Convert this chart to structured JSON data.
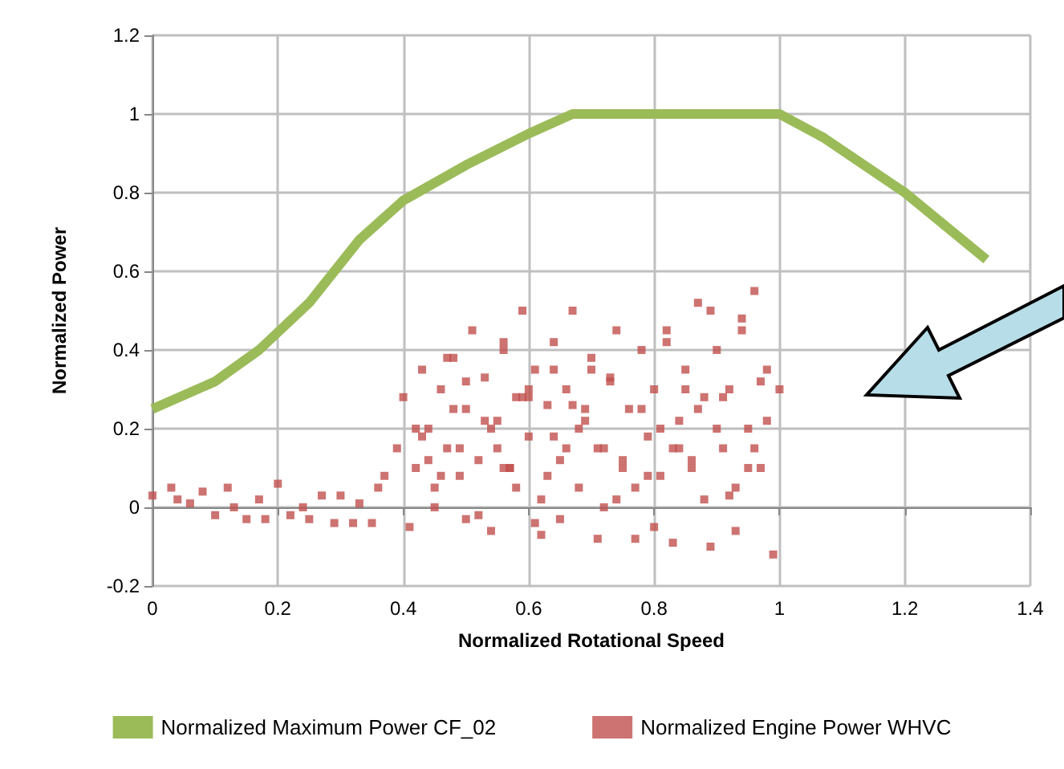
{
  "chart_data": {
    "type": "scatter",
    "xlabel": "Normalized Rotational Speed",
    "ylabel": "Normalized Power",
    "xlim": [
      0,
      1.4
    ],
    "xticks": [
      0,
      0.2,
      0.4,
      0.6,
      0.8,
      1,
      1.2,
      1.4
    ],
    "ylim": [
      -0.2,
      1.2
    ],
    "yticks": [
      -0.2,
      0,
      0.2,
      0.4,
      0.6,
      0.8,
      1,
      1.2
    ],
    "grid": true,
    "legend": "bottom",
    "series": [
      {
        "name": "Normalized Maximum Power CF_02",
        "type": "line",
        "color": "#9bbb59",
        "marker": "none",
        "x": [
          0,
          0.1,
          0.17,
          0.25,
          0.33,
          0.4,
          0.5,
          0.6,
          0.67,
          1,
          1.07,
          1.2,
          1.33
        ],
        "values": [
          0.25,
          0.32,
          0.4,
          0.52,
          0.68,
          0.78,
          0.87,
          0.95,
          1,
          1,
          0.94,
          0.8,
          0.63
        ]
      },
      {
        "name": "Normalized Engine Power WHVC",
        "color": "#c0504d",
        "marker": "square",
        "x": [
          0,
          0.03,
          0.04,
          0.06,
          0.08,
          0.1,
          0.12,
          0.13,
          0.15,
          0.17,
          0.18,
          0.2,
          0.22,
          0.24,
          0.25,
          0.27,
          0.29,
          0.3,
          0.32,
          0.33,
          0.35,
          0.36,
          0.37,
          0.39,
          0.4,
          0.41,
          0.42,
          0.43,
          0.44,
          0.45,
          0.46,
          0.47,
          0.48,
          0.49,
          0.5,
          0.51,
          0.52,
          0.53,
          0.54,
          0.55,
          0.56,
          0.57,
          0.58,
          0.59,
          0.6,
          0.61,
          0.62,
          0.63,
          0.64,
          0.65,
          0.66,
          0.67,
          0.68,
          0.69,
          0.7,
          0.71,
          0.72,
          0.73,
          0.74,
          0.75,
          0.76,
          0.77,
          0.78,
          0.79,
          0.8,
          0.81,
          0.82,
          0.83,
          0.84,
          0.85,
          0.86,
          0.87,
          0.88,
          0.89,
          0.9,
          0.91,
          0.92,
          0.93,
          0.94,
          0.95,
          0.96,
          0.97,
          0.98,
          0.99,
          1,
          0.42,
          0.45,
          0.48,
          0.5,
          0.52,
          0.55,
          0.58,
          0.6,
          0.63,
          0.65,
          0.68,
          0.7,
          0.72,
          0.75,
          0.78,
          0.8,
          0.83,
          0.85,
          0.88,
          0.9,
          0.93,
          0.95,
          0.98,
          0.44,
          0.47,
          0.5,
          0.53,
          0.56,
          0.59,
          0.62,
          0.66,
          0.69,
          0.73,
          0.77,
          0.81,
          0.86,
          0.91,
          0.96,
          0.43,
          0.46,
          0.49,
          0.54,
          0.57,
          0.61,
          0.64,
          0.67,
          0.71,
          0.74,
          0.79,
          0.84,
          0.87,
          0.92,
          0.97,
          0.56,
          0.6,
          0.64,
          0.82,
          0.89,
          0.94
        ],
        "values": [
          0.03,
          0.05,
          0.02,
          0.01,
          0.04,
          -0.02,
          0.05,
          0,
          -0.03,
          0.02,
          -0.03,
          0.06,
          -0.02,
          0,
          -0.03,
          0.03,
          -0.04,
          0.03,
          -0.04,
          0.01,
          -0.04,
          0.05,
          0.08,
          0.15,
          0.28,
          -0.05,
          0.1,
          0.35,
          0.2,
          0.05,
          0.3,
          0.15,
          0.38,
          0.08,
          0.25,
          0.45,
          0.12,
          0.33,
          -0.06,
          0.22,
          0.4,
          0.1,
          0.28,
          0.5,
          0.18,
          0.35,
          -0.07,
          0.26,
          0.42,
          0.12,
          0.3,
          0.5,
          0.05,
          0.22,
          0.38,
          -0.08,
          0.15,
          0.32,
          0.45,
          0.1,
          0.25,
          -0.08,
          0.4,
          0.18,
          0.3,
          0.08,
          0.45,
          -0.09,
          0.22,
          0.35,
          0.12,
          0.52,
          0.28,
          -0.1,
          0.4,
          0.15,
          0.3,
          0.05,
          0.48,
          0.2,
          0.55,
          0.1,
          0.35,
          -0.12,
          0.3,
          0.2,
          0,
          0.25,
          0.32,
          -0.02,
          0.15,
          0.05,
          0.3,
          0.08,
          -0.03,
          0.2,
          0.35,
          0,
          0.12,
          0.25,
          -0.05,
          0.15,
          0.3,
          0.02,
          0.2,
          -0.06,
          0.1,
          0.22,
          0.12,
          0.38,
          -0.03,
          0.22,
          0.1,
          0.28,
          0.02,
          0.15,
          0.25,
          0.33,
          0.05,
          0.2,
          0.1,
          0.28,
          0.15,
          0.18,
          0.08,
          0.15,
          0.2,
          0.1,
          -0.04,
          0.18,
          0.26,
          0.15,
          0.02,
          0.08,
          0.15,
          0.25,
          0.03,
          0.32,
          0.42,
          0.28,
          0.35,
          0.42,
          0.5,
          0.45
        ]
      }
    ]
  }
}
